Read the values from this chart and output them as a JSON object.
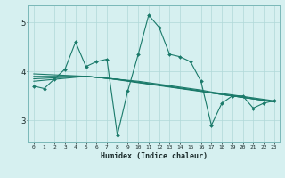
{
  "xlabel": "Humidex (Indice chaleur)",
  "x": [
    0,
    1,
    2,
    3,
    4,
    5,
    6,
    7,
    8,
    9,
    10,
    11,
    12,
    13,
    14,
    15,
    16,
    17,
    18,
    19,
    20,
    21,
    22,
    23
  ],
  "main_line": [
    3.7,
    3.65,
    3.85,
    4.05,
    4.6,
    4.1,
    4.2,
    4.25,
    2.7,
    3.6,
    4.35,
    5.15,
    4.9,
    4.35,
    4.3,
    4.2,
    3.8,
    2.9,
    3.35,
    3.5,
    3.5,
    3.25,
    3.35,
    3.4
  ],
  "trend1": [
    3.9,
    3.9,
    3.9,
    3.9,
    3.9,
    3.9,
    3.88,
    3.86,
    3.84,
    3.82,
    3.8,
    3.77,
    3.74,
    3.71,
    3.68,
    3.65,
    3.62,
    3.58,
    3.55,
    3.52,
    3.49,
    3.46,
    3.43,
    3.4
  ],
  "trend2": [
    3.95,
    3.94,
    3.93,
    3.92,
    3.91,
    3.9,
    3.88,
    3.86,
    3.83,
    3.8,
    3.77,
    3.74,
    3.71,
    3.68,
    3.65,
    3.62,
    3.59,
    3.56,
    3.53,
    3.5,
    3.47,
    3.44,
    3.41,
    3.38
  ],
  "trend3": [
    3.85,
    3.86,
    3.87,
    3.88,
    3.89,
    3.9,
    3.88,
    3.86,
    3.84,
    3.81,
    3.78,
    3.75,
    3.72,
    3.69,
    3.66,
    3.63,
    3.6,
    3.56,
    3.53,
    3.5,
    3.47,
    3.44,
    3.41,
    3.38
  ],
  "trend4": [
    3.8,
    3.82,
    3.84,
    3.86,
    3.88,
    3.9,
    3.88,
    3.86,
    3.84,
    3.81,
    3.78,
    3.75,
    3.72,
    3.69,
    3.66,
    3.63,
    3.6,
    3.56,
    3.53,
    3.5,
    3.47,
    3.44,
    3.41,
    3.38
  ],
  "bg_color": "#d6f0f0",
  "grid_color": "#b0d8d8",
  "line_color": "#1a7a6a",
  "ylim": [
    2.55,
    5.35
  ],
  "yticks": [
    3,
    4,
    5
  ],
  "xlim": [
    -0.5,
    23.5
  ]
}
